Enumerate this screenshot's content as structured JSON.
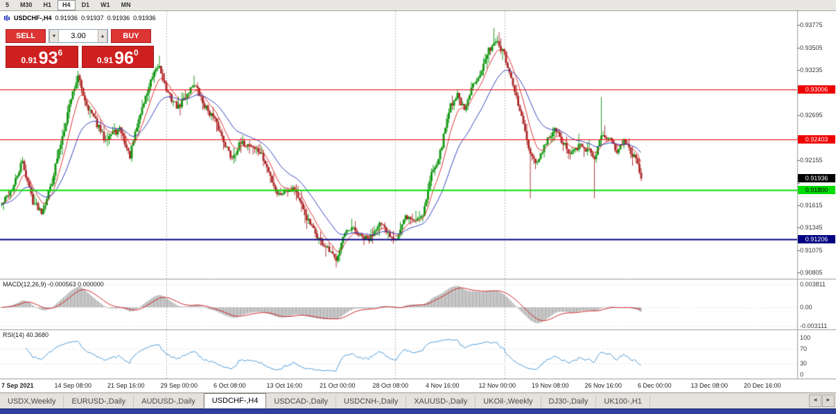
{
  "toolbar": {
    "timeframes": [
      {
        "label": "5",
        "active": false
      },
      {
        "label": "M30",
        "active": false
      },
      {
        "label": "H1",
        "active": false
      },
      {
        "label": "H4",
        "active": true
      },
      {
        "label": "D1",
        "active": false
      },
      {
        "label": "W1",
        "active": false
      },
      {
        "label": "MN",
        "active": false
      }
    ]
  },
  "chart_header": {
    "symbol": "USDCHF-,H4",
    "open": "0.91936",
    "high": "0.91937",
    "low": "0.91936",
    "close": "0.91936"
  },
  "trade_panel": {
    "sell_label": "SELL",
    "buy_label": "BUY",
    "volume": "3.00",
    "volume_down_glyph": "▼",
    "volume_up_glyph": "▲",
    "sell_price_base": "0.91",
    "sell_price_pips": "93",
    "sell_price_pipette": "6",
    "buy_price_base": "0.91",
    "buy_price_pips": "96",
    "buy_price_pipette": "0"
  },
  "indicators": {
    "macd_label": "MACD(12,26,9) -0.000563 0.000000",
    "rsi_label": "RSI(14) 40.3680"
  },
  "chart_data": {
    "type": "candlestick",
    "symbol": "USDCHF",
    "timeframe": "H4",
    "panels": [
      "price",
      "MACD",
      "RSI"
    ],
    "current_price": 0.91936,
    "current_price_tag": {
      "label": "0.91936",
      "bg": "#000000",
      "text": "#ffffff"
    },
    "price_axis_range": [
      0.90733,
      0.93945
    ],
    "price_axis_labels": [
      "0.93775",
      "0.93505",
      "0.93235",
      "0.92965",
      "0.92695",
      "0.92425",
      "0.92155",
      "0.91885",
      "0.91615",
      "0.91345",
      "0.91075",
      "0.90805"
    ],
    "levels": [
      {
        "price": 0.93006,
        "label": "0.93006",
        "color": "#ee0000",
        "text": "#ffffff",
        "width": 1
      },
      {
        "price": 0.92403,
        "label": "0.92403",
        "color": "#ee0000",
        "text": "#ffffff",
        "width": 1
      },
      {
        "price": 0.918,
        "label": "0.91800",
        "color": "#00dd00",
        "text": "#000000",
        "width": 2
      },
      {
        "price": 0.91206,
        "label": "0.91206",
        "color": "#000080",
        "text": "#ffffff",
        "width": 2
      }
    ],
    "data_width_frac": 0.804,
    "price_path": [
      [
        0.0,
        0.9162
      ],
      [
        0.019,
        0.9185
      ],
      [
        0.032,
        0.9214
      ],
      [
        0.049,
        0.9166
      ],
      [
        0.063,
        0.9154
      ],
      [
        0.078,
        0.9189
      ],
      [
        0.092,
        0.9235
      ],
      [
        0.108,
        0.929
      ],
      [
        0.119,
        0.9316
      ],
      [
        0.132,
        0.9284
      ],
      [
        0.144,
        0.9266
      ],
      [
        0.16,
        0.9242
      ],
      [
        0.173,
        0.9248
      ],
      [
        0.186,
        0.9252
      ],
      [
        0.2,
        0.9219
      ],
      [
        0.216,
        0.927
      ],
      [
        0.232,
        0.9308
      ],
      [
        0.246,
        0.933
      ],
      [
        0.259,
        0.9296
      ],
      [
        0.276,
        0.9278
      ],
      [
        0.29,
        0.9296
      ],
      [
        0.301,
        0.9308
      ],
      [
        0.316,
        0.9282
      ],
      [
        0.33,
        0.9268
      ],
      [
        0.344,
        0.9245
      ],
      [
        0.359,
        0.9218
      ],
      [
        0.373,
        0.9235
      ],
      [
        0.389,
        0.9234
      ],
      [
        0.405,
        0.9224
      ],
      [
        0.419,
        0.9198
      ],
      [
        0.432,
        0.9174
      ],
      [
        0.445,
        0.918
      ],
      [
        0.458,
        0.9183
      ],
      [
        0.471,
        0.9155
      ],
      [
        0.486,
        0.9133
      ],
      [
        0.499,
        0.9118
      ],
      [
        0.514,
        0.9104
      ],
      [
        0.522,
        0.9096
      ],
      [
        0.535,
        0.9125
      ],
      [
        0.549,
        0.9133
      ],
      [
        0.562,
        0.9123
      ],
      [
        0.575,
        0.912
      ],
      [
        0.589,
        0.9141
      ],
      [
        0.603,
        0.9128
      ],
      [
        0.618,
        0.9122
      ],
      [
        0.632,
        0.9148
      ],
      [
        0.646,
        0.9143
      ],
      [
        0.659,
        0.9152
      ],
      [
        0.672,
        0.92
      ],
      [
        0.686,
        0.9225
      ],
      [
        0.7,
        0.9279
      ],
      [
        0.713,
        0.9295
      ],
      [
        0.724,
        0.9273
      ],
      [
        0.737,
        0.9307
      ],
      [
        0.751,
        0.9325
      ],
      [
        0.762,
        0.9348
      ],
      [
        0.772,
        0.936
      ],
      [
        0.778,
        0.9352
      ],
      [
        0.786,
        0.9342
      ],
      [
        0.795,
        0.9315
      ],
      [
        0.805,
        0.929
      ],
      [
        0.816,
        0.9258
      ],
      [
        0.827,
        0.9218
      ],
      [
        0.838,
        0.9212
      ],
      [
        0.852,
        0.9238
      ],
      [
        0.865,
        0.9252
      ],
      [
        0.878,
        0.9236
      ],
      [
        0.889,
        0.9222
      ],
      [
        0.903,
        0.9233
      ],
      [
        0.917,
        0.9228
      ],
      [
        0.928,
        0.9216
      ],
      [
        0.938,
        0.925
      ],
      [
        0.949,
        0.9242
      ],
      [
        0.962,
        0.9228
      ],
      [
        0.973,
        0.9238
      ],
      [
        0.984,
        0.9224
      ],
      [
        0.992,
        0.922
      ],
      [
        1.0,
        0.91936
      ]
    ],
    "spikes": [
      [
        0.119,
        0.9323,
        "hi"
      ],
      [
        0.246,
        0.9341,
        "hi"
      ],
      [
        0.522,
        0.9087,
        "lo"
      ],
      [
        0.769,
        0.9374,
        "hi"
      ],
      [
        0.827,
        0.917,
        "lo"
      ],
      [
        0.928,
        0.917,
        "lo"
      ],
      [
        0.938,
        0.9291,
        "hi"
      ]
    ],
    "month_separators_frac": [
      0.209,
      0.496,
      0.633
    ],
    "time_axis_labels": [
      "7 Sep 2021",
      "14 Sep 08:00",
      "21 Sep 16:00",
      "29 Sep 00:00",
      "6 Oct 08:00",
      "13 Oct 16:00",
      "21 Oct 00:00",
      "28 Oct 08:00",
      "4 Nov 16:00",
      "12 Nov 00:00",
      "19 Nov 08:00",
      "26 Nov 16:00",
      "6 Dec 00:00",
      "13 Dec 08:00",
      "20 Dec 16:00"
    ],
    "macd": {
      "params": "12,26,9",
      "value": -0.000563,
      "signal": 0.0,
      "axis_labels": [
        "0.003811",
        "0.00",
        "-0.003111"
      ],
      "axis_values": [
        0.003811,
        0,
        -0.003111
      ],
      "range": [
        -0.0037,
        0.00465
      ]
    },
    "rsi": {
      "period": 14,
      "value": 40.368,
      "levels": [
        70,
        30
      ],
      "axis_labels": [
        "100",
        "70",
        "30",
        "0"
      ],
      "axis_values": [
        100,
        70,
        30,
        0
      ],
      "range": [
        0,
        100
      ]
    }
  },
  "tabs": {
    "items": [
      "USDX,Weekly",
      "EURUSD-,Daily",
      "AUDUSD-,Daily",
      "USDCHF-,H4",
      "USDCAD-,Daily",
      "USDCNH-,Daily",
      "XAUUSD-,Daily",
      "UKOil-,Weekly",
      "DJ30-,Daily",
      "UK100-,H1"
    ],
    "active_index": 3,
    "scroll_left_glyph": "◄",
    "scroll_right_glyph": "►"
  },
  "colors": {
    "bull": "#179a17",
    "bear": "#b03030",
    "ma_fast": "#e03030",
    "ma_slow": "#2f3fc0",
    "macd_hist": "#b4b4b4",
    "macd_signal": "#cc2222",
    "rsi_line": "#4a9bdb",
    "panel_border": "#9c9c9c",
    "separator": "#b8b8b8",
    "grid_dots": "#d0d0d0"
  }
}
